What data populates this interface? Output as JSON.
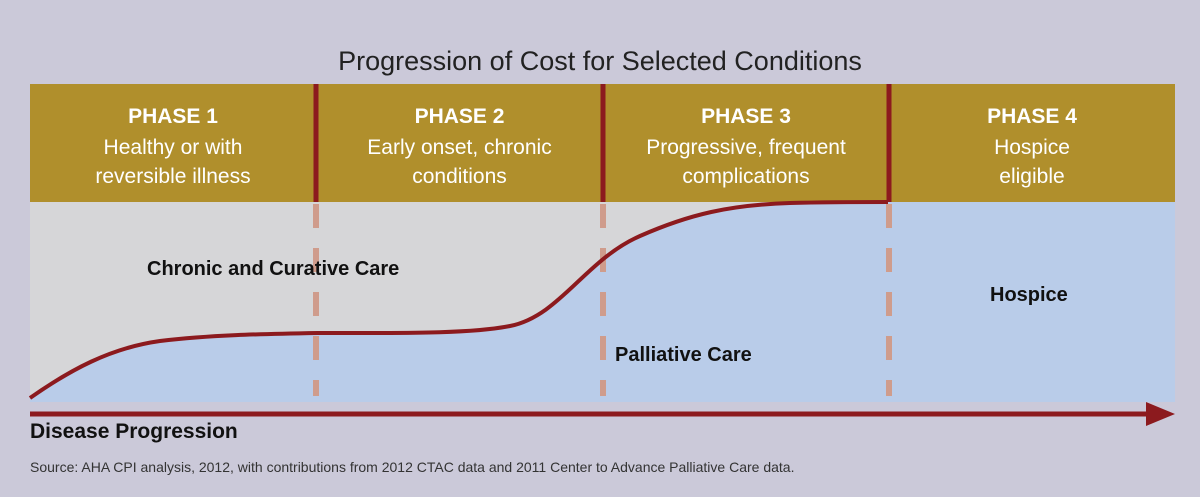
{
  "title": "Progression of Cost for Selected Conditions",
  "colors": {
    "background": "#cbc9d9",
    "phase_header": "#b08f2c",
    "grey_area": "#d6d6d8",
    "blue_area": "#b9cce9",
    "curve": "#8c1a1e",
    "dashes": "#cf9c8c"
  },
  "phases": [
    {
      "name": "PHASE 1",
      "description": "Healthy or with\nreversible illness"
    },
    {
      "name": "PHASE 2",
      "description": "Early onset, chronic\nconditions"
    },
    {
      "name": "PHASE 3",
      "description": "Progressive, frequent\ncomplications"
    },
    {
      "name": "PHASE 4",
      "description": "Hospice\neligible"
    }
  ],
  "regions": {
    "chronic": "Chronic and Curative Care",
    "palliative": "Palliative Care",
    "hospice": "Hospice"
  },
  "axis_label": "Disease Progression",
  "source": "Source: AHA CPI analysis, 2012, with contributions from 2012 CTAC data and 2011 Center to Advance Palliative Care data."
}
